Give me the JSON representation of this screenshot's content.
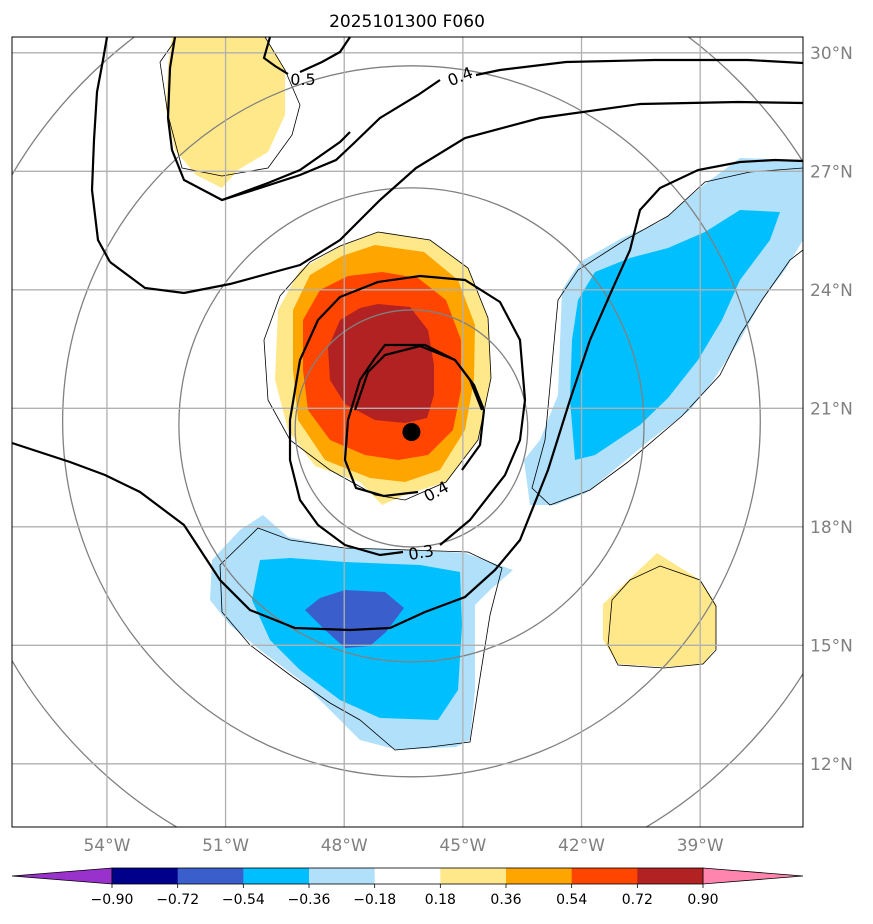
{
  "chart_data": {
    "type": "contour-map",
    "title": "2025101300 F060",
    "x_axis": {
      "label": "",
      "range": [
        -56.4,
        -36.4
      ],
      "ticks": [
        -54,
        -51,
        -48,
        -45,
        -42,
        -39
      ],
      "tick_labels": [
        "54°W",
        "51°W",
        "48°W",
        "45°W",
        "42°W",
        "39°W"
      ]
    },
    "y_axis": {
      "label": "",
      "range": [
        10.4,
        30.4
      ],
      "ticks": [
        12,
        15,
        18,
        21,
        24,
        27,
        30
      ],
      "tick_labels": [
        "12°N",
        "15°N",
        "18°N",
        "21°N",
        "24°N",
        "27°N",
        "30°N"
      ],
      "position": "right"
    },
    "grid": true,
    "storm_center": {
      "lon": -46.3,
      "lat": 20.4
    },
    "range_rings_deg": [
      3,
      6,
      9,
      12
    ],
    "filled_field": {
      "colorbar": {
        "levels": [
          -0.9,
          -0.72,
          -0.54,
          -0.36,
          -0.18,
          0.18,
          0.36,
          0.54,
          0.72,
          0.9
        ],
        "tick_labels": [
          "−0.90",
          "−0.72",
          "−0.54",
          "−0.36",
          "−0.18",
          "0.18",
          "0.36",
          "0.54",
          "0.72",
          "0.90"
        ],
        "colors": [
          "#9932cc",
          "#00008b",
          "#3a5fcd",
          "#00bfff",
          "#b0e0fa",
          "#ffffff",
          "#ffe88a",
          "#ffa500",
          "#ff4500",
          "#b22222",
          "#ff85ae"
        ],
        "extend": "both",
        "placement": "bottom"
      },
      "regions": [
        {
          "name": "warm-core",
          "peak_value": 0.85,
          "center": {
            "lon": -46.8,
            "lat": 22.3
          }
        },
        {
          "name": "northwest-positive",
          "peak_value": 0.25,
          "center": {
            "lon": -50.8,
            "lat": 29.0
          }
        },
        {
          "name": "southeast-positive",
          "peak_value": 0.25,
          "center": {
            "lon": -39.7,
            "lat": 15.5
          }
        },
        {
          "name": "south-negative",
          "peak_value": -0.62,
          "center": {
            "lon": -47.5,
            "lat": 15.8
          }
        },
        {
          "name": "east-negative",
          "peak_value": -0.5,
          "center": {
            "lon": -40.5,
            "lat": 22.5
          }
        }
      ]
    },
    "line_contours": {
      "levels_labeled": [
        "0.3",
        "0.4",
        "0.4",
        "0.5"
      ],
      "labels": [
        {
          "text": "0.5",
          "lon": -49.1,
          "lat": 29.5
        },
        {
          "text": "0.4",
          "lon": -44.4,
          "lat": 29.3
        },
        {
          "text": "0.4",
          "lon": -45.6,
          "lat": 19.0
        },
        {
          "text": "0.3",
          "lon": -46.4,
          "lat": 17.5
        }
      ]
    }
  }
}
